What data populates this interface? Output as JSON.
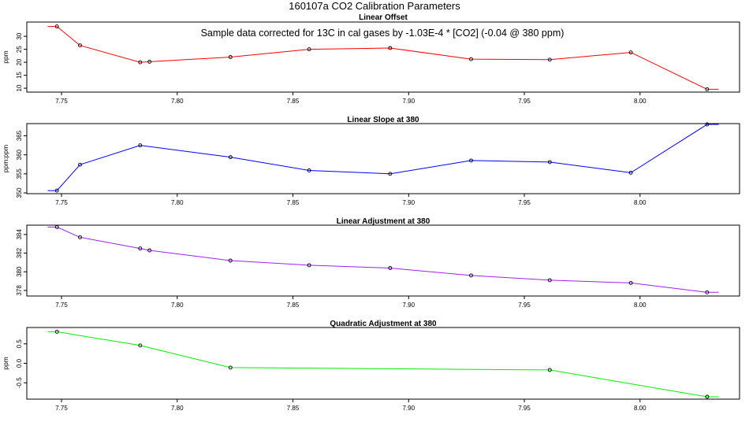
{
  "page": {
    "title": "160107a   CO2 Calibration Parameters"
  },
  "chart_data": [
    {
      "type": "line",
      "title": "Linear Offset",
      "annotation": "Sample data corrected for 13C in cal gases by -1.03E-4 * [CO2] (-0.04 @ 380 ppm)",
      "xlabel": "",
      "ylabel": "ppm",
      "color": "#ff0000",
      "xlim": [
        7.735,
        8.043
      ],
      "ylim": [
        8.5,
        35.5
      ],
      "x_ticks": [
        7.75,
        7.8,
        7.85,
        7.9,
        7.95,
        8.0
      ],
      "x_tick_labels": [
        "7.75",
        "7.80",
        "7.85",
        "7.90",
        "7.95",
        "8.00"
      ],
      "y_ticks": [
        10,
        15,
        20,
        25,
        30
      ],
      "y_tick_labels": [
        "10",
        "15",
        "20",
        "25",
        "30"
      ],
      "line_x": [
        7.744,
        7.748,
        7.758,
        7.784,
        7.788,
        7.823,
        7.857,
        7.892,
        7.927,
        7.961,
        7.996,
        8.029,
        8.034
      ],
      "line_y": [
        33.8,
        33.8,
        26.5,
        20.0,
        20.2,
        22.0,
        25.0,
        25.5,
        21.2,
        21.0,
        23.8,
        9.6,
        9.6
      ],
      "x": [
        7.748,
        7.758,
        7.784,
        7.788,
        7.823,
        7.857,
        7.892,
        7.927,
        7.961,
        7.996,
        8.029
      ],
      "y": [
        33.8,
        26.5,
        20.0,
        20.2,
        22.0,
        25.0,
        25.5,
        21.2,
        21.0,
        23.8,
        9.6
      ]
    },
    {
      "type": "line",
      "title": "Linear Slope at 380",
      "xlabel": "",
      "ylabel": "ppm:ppm",
      "color": "#0000ff",
      "xlim": [
        7.735,
        8.043
      ],
      "ylim": [
        349.8,
        368.2
      ],
      "x_ticks": [
        7.75,
        7.8,
        7.85,
        7.9,
        7.95,
        8.0
      ],
      "x_tick_labels": [
        "7.75",
        "7.80",
        "7.85",
        "7.90",
        "7.95",
        "8.00"
      ],
      "y_ticks": [
        350,
        355,
        360,
        365
      ],
      "y_tick_labels": [
        "350",
        "355",
        "360",
        "365"
      ],
      "line_x": [
        7.744,
        7.748,
        7.758,
        7.784,
        7.823,
        7.857,
        7.892,
        7.927,
        7.961,
        7.996,
        8.029,
        8.034
      ],
      "line_y": [
        350.6,
        350.6,
        357.4,
        362.5,
        359.4,
        355.9,
        355.0,
        358.5,
        358.1,
        355.3,
        368.0,
        368.0
      ],
      "x": [
        7.748,
        7.758,
        7.784,
        7.823,
        7.857,
        7.892,
        7.927,
        7.961,
        7.996,
        8.029
      ],
      "y": [
        350.6,
        357.4,
        362.5,
        359.4,
        355.9,
        355.0,
        358.5,
        358.1,
        355.3,
        368.0
      ]
    },
    {
      "type": "line",
      "title": "Linear Adjustment at 380",
      "xlabel": "",
      "ylabel": "",
      "color": "#a020f0",
      "xlim": [
        7.735,
        8.043
      ],
      "ylim": [
        377.4,
        385.0
      ],
      "x_ticks": [
        7.75,
        7.8,
        7.85,
        7.9,
        7.95,
        8.0
      ],
      "x_tick_labels": [
        "7.75",
        "7.80",
        "7.85",
        "7.90",
        "7.95",
        "8.00"
      ],
      "y_ticks": [
        378,
        380,
        382,
        384
      ],
      "y_tick_labels": [
        "378",
        "380",
        "382",
        "384"
      ],
      "line_x": [
        7.744,
        7.748,
        7.758,
        7.784,
        7.788,
        7.823,
        7.857,
        7.892,
        7.927,
        7.961,
        7.996,
        8.029,
        8.034
      ],
      "line_y": [
        384.8,
        384.8,
        383.7,
        382.5,
        382.3,
        381.2,
        380.7,
        380.4,
        379.6,
        379.1,
        378.8,
        377.8,
        377.8
      ],
      "x": [
        7.748,
        7.758,
        7.784,
        7.788,
        7.823,
        7.857,
        7.892,
        7.927,
        7.961,
        7.996,
        8.029
      ],
      "y": [
        384.8,
        383.7,
        382.5,
        382.3,
        381.2,
        380.7,
        380.4,
        379.6,
        379.1,
        378.8,
        377.8
      ]
    },
    {
      "type": "line",
      "title": "Quadratic Adjustment at 380",
      "xlabel": "",
      "ylabel": "ppm",
      "color": "#00ee00",
      "xlim": [
        7.735,
        8.043
      ],
      "ylim": [
        -0.92,
        0.92
      ],
      "x_ticks": [
        7.75,
        7.8,
        7.85,
        7.9,
        7.95,
        8.0
      ],
      "x_tick_labels": [
        "7.75",
        "7.80",
        "7.85",
        "7.90",
        "7.95",
        "8.00"
      ],
      "y_ticks": [
        -0.5,
        0.0,
        0.5
      ],
      "y_tick_labels": [
        "-0.5",
        "0.0",
        "0.5"
      ],
      "line_x": [
        7.744,
        7.748,
        7.784,
        7.823,
        7.961,
        8.029,
        8.034
      ],
      "line_y": [
        0.81,
        0.81,
        0.46,
        -0.11,
        -0.17,
        -0.86,
        -0.86
      ],
      "x": [
        7.748,
        7.784,
        7.823,
        7.961,
        8.029
      ],
      "y": [
        0.81,
        0.46,
        -0.11,
        -0.17,
        -0.86
      ]
    }
  ]
}
